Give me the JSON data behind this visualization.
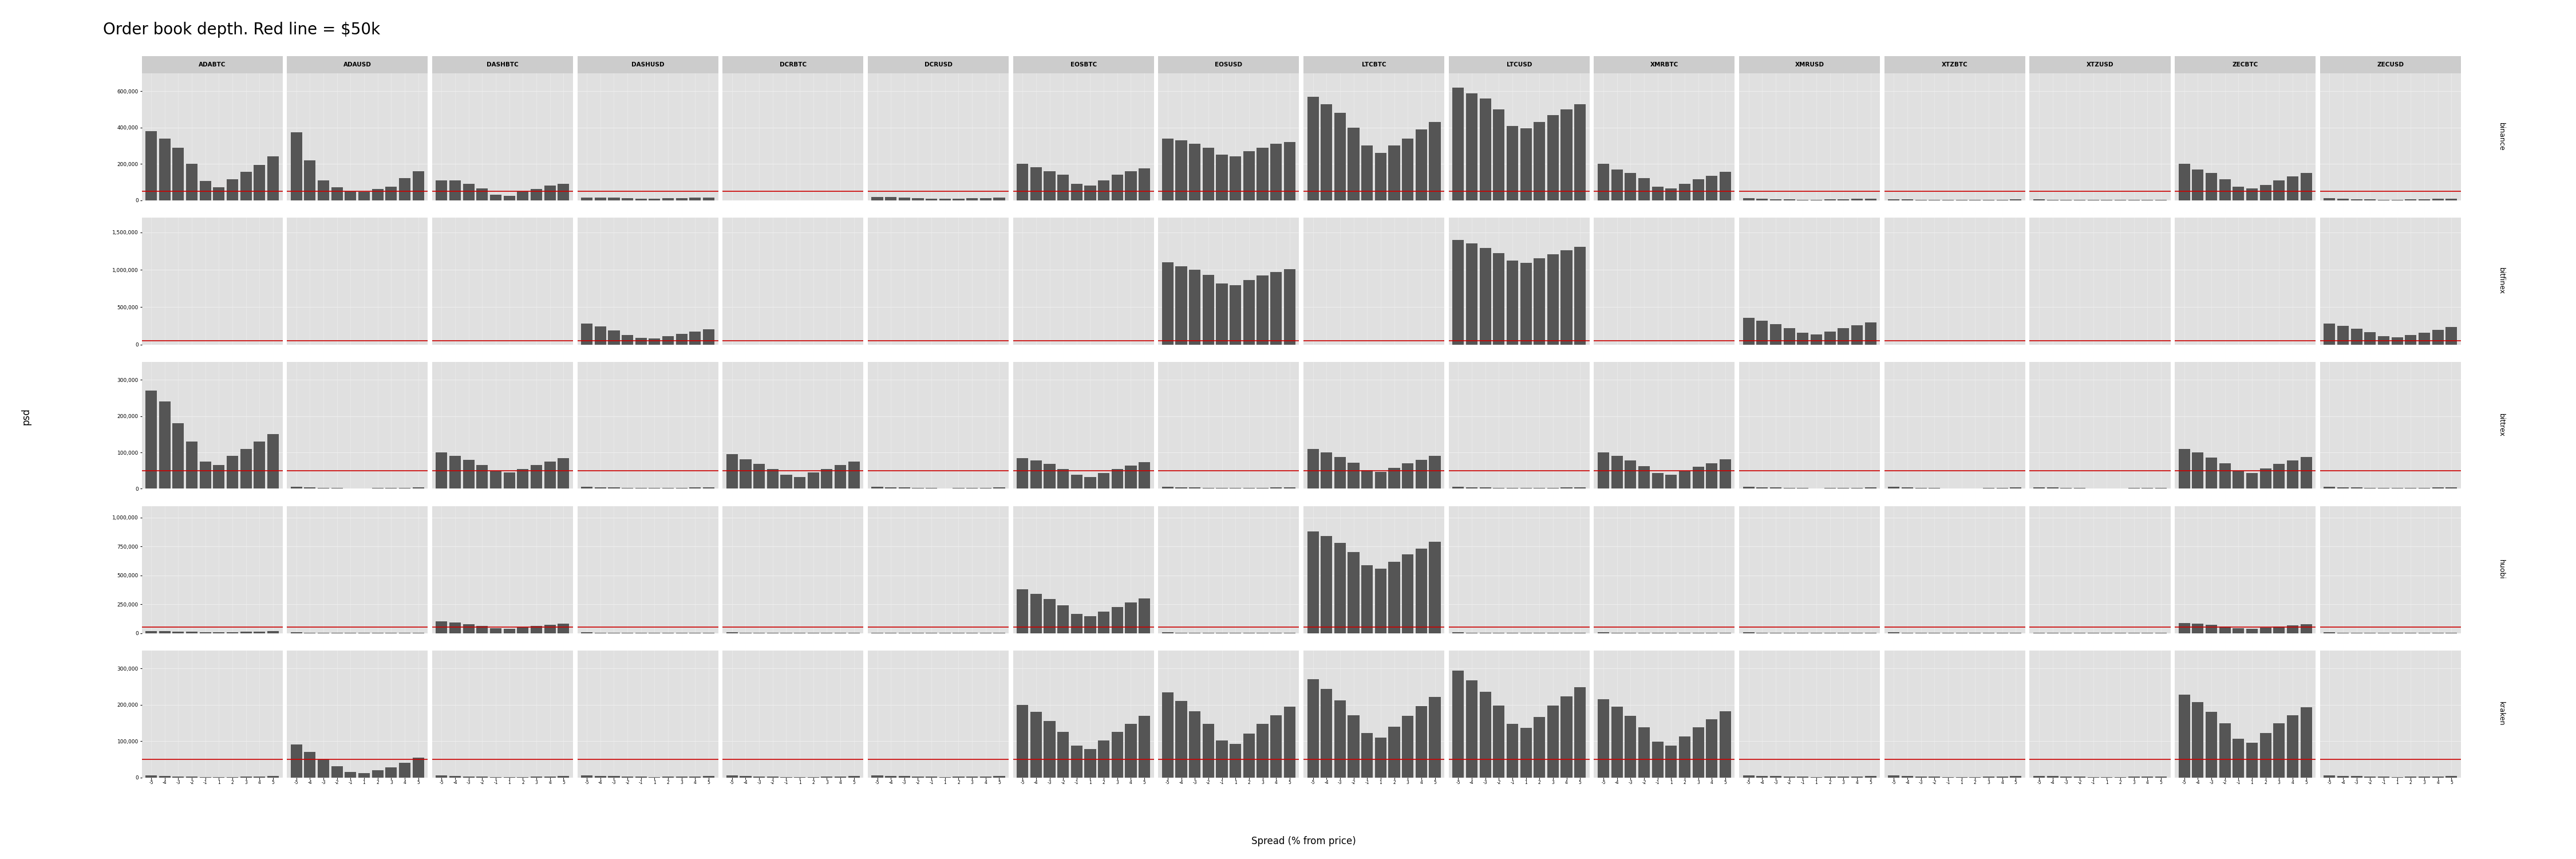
{
  "title": "Order book depth. Red line = $50k",
  "xlabel": "Spread (% from price)",
  "ylabel": "psd",
  "red_line_value": 50000,
  "exchanges": [
    "binance",
    "bitfinex",
    "bittrex",
    "huobi",
    "kraken"
  ],
  "pairs": [
    "ADABTC",
    "ADAUSD",
    "DASHBTC",
    "DASHUSD",
    "DCRBTC",
    "DCRUSD",
    "EOSBTC",
    "EOSUSD",
    "LTCBTC",
    "LTCUSD",
    "XMRBTC",
    "XMRUSD",
    "XTZBTC",
    "XTZUSD",
    "ZECBTC",
    "ZECUSD"
  ],
  "spread_labels": [
    "-5",
    "-4",
    "-3",
    "-2",
    "-1",
    "1",
    "2",
    "3",
    "4",
    "5"
  ],
  "bar_color": "#555555",
  "red_color": "#cc0000",
  "panel_bg": "#e0e0e0",
  "strip_bg": "#cccccc",
  "grid_color": "#f0f0f0",
  "fig_bg": "#ffffff",
  "ylims": {
    "binance": [
      0,
      700000
    ],
    "bitfinex": [
      0,
      1700000
    ],
    "bittrex": [
      0,
      350000
    ],
    "huobi": [
      0,
      1100000
    ],
    "kraken": [
      0,
      350000
    ]
  },
  "yticks": {
    "binance": [
      0,
      200000,
      400000,
      600000
    ],
    "bitfinex": [
      0,
      500000,
      1000000,
      1500000
    ],
    "bittrex": [
      0,
      100000,
      200000,
      300000
    ],
    "huobi": [
      0,
      250000,
      500000,
      750000,
      1000000
    ],
    "kraken": [
      0,
      100000,
      200000,
      300000
    ]
  },
  "data": {
    "binance": {
      "ADABTC": [
        380000,
        340000,
        290000,
        200000,
        105000,
        70000,
        115000,
        155000,
        195000,
        240000
      ],
      "ADAUSD": [
        375000,
        220000,
        110000,
        70000,
        50000,
        45000,
        60000,
        75000,
        120000,
        160000
      ],
      "DASHBTC": [
        110000,
        110000,
        90000,
        65000,
        30000,
        25000,
        50000,
        60000,
        80000,
        90000
      ],
      "DASHUSD": [
        15000,
        15000,
        15000,
        10000,
        8000,
        8000,
        10000,
        12000,
        13000,
        14000
      ],
      "DCRBTC": [
        0,
        0,
        0,
        0,
        0,
        0,
        0,
        0,
        0,
        0
      ],
      "DCRUSD": [
        18000,
        16000,
        13000,
        10000,
        7000,
        7000,
        8000,
        10000,
        12000,
        15000
      ],
      "EOSBTC": [
        200000,
        180000,
        160000,
        140000,
        90000,
        80000,
        110000,
        140000,
        160000,
        175000
      ],
      "EOSUSD": [
        340000,
        330000,
        310000,
        290000,
        250000,
        240000,
        270000,
        290000,
        310000,
        320000
      ],
      "LTCBTC": [
        570000,
        530000,
        480000,
        400000,
        300000,
        260000,
        300000,
        340000,
        390000,
        430000
      ],
      "LTCUSD": [
        620000,
        590000,
        560000,
        500000,
        410000,
        395000,
        430000,
        470000,
        500000,
        530000
      ],
      "XMRBTC": [
        200000,
        170000,
        150000,
        120000,
        75000,
        65000,
        90000,
        115000,
        135000,
        155000
      ],
      "XMRUSD": [
        10000,
        8000,
        6000,
        4000,
        3000,
        3000,
        4000,
        5000,
        7000,
        9000
      ],
      "XTZBTC": [
        5000,
        4000,
        3000,
        2000,
        1500,
        1500,
        2000,
        2500,
        3000,
        4000
      ],
      "XTZUSD": [
        4000,
        3000,
        2000,
        1500,
        1000,
        1000,
        1500,
        2000,
        2500,
        3000
      ],
      "ZECBTC": [
        200000,
        170000,
        150000,
        115000,
        75000,
        65000,
        85000,
        110000,
        130000,
        150000
      ],
      "ZECUSD": [
        10000,
        8000,
        6000,
        5000,
        3000,
        3000,
        4000,
        6000,
        7000,
        9000
      ]
    },
    "bitfinex": {
      "ADABTC": [
        0,
        0,
        0,
        0,
        0,
        0,
        0,
        0,
        0,
        0
      ],
      "ADAUSD": [
        0,
        0,
        0,
        0,
        0,
        0,
        0,
        0,
        0,
        0
      ],
      "DASHBTC": [
        0,
        0,
        0,
        0,
        0,
        0,
        0,
        0,
        0,
        0
      ],
      "DASHUSD": [
        280000,
        240000,
        190000,
        130000,
        90000,
        80000,
        110000,
        140000,
        170000,
        200000
      ],
      "DCRBTC": [
        0,
        0,
        0,
        0,
        0,
        0,
        0,
        0,
        0,
        0
      ],
      "DCRUSD": [
        0,
        0,
        0,
        0,
        0,
        0,
        0,
        0,
        0,
        0
      ],
      "EOSBTC": [
        0,
        0,
        0,
        0,
        0,
        0,
        0,
        0,
        0,
        0
      ],
      "EOSUSD": [
        1100000,
        1050000,
        1000000,
        930000,
        820000,
        790000,
        860000,
        920000,
        970000,
        1010000
      ],
      "LTCBTC": [
        0,
        0,
        0,
        0,
        0,
        0,
        0,
        0,
        0,
        0
      ],
      "LTCUSD": [
        1400000,
        1350000,
        1290000,
        1220000,
        1120000,
        1090000,
        1150000,
        1210000,
        1260000,
        1310000
      ],
      "XMRBTC": [
        0,
        0,
        0,
        0,
        0,
        0,
        0,
        0,
        0,
        0
      ],
      "XMRUSD": [
        360000,
        320000,
        270000,
        220000,
        155000,
        135000,
        175000,
        215000,
        255000,
        295000
      ],
      "XTZBTC": [
        0,
        0,
        0,
        0,
        0,
        0,
        0,
        0,
        0,
        0
      ],
      "XTZUSD": [
        0,
        0,
        0,
        0,
        0,
        0,
        0,
        0,
        0,
        0
      ],
      "ZECBTC": [
        0,
        0,
        0,
        0,
        0,
        0,
        0,
        0,
        0,
        0
      ],
      "ZECUSD": [
        280000,
        250000,
        210000,
        165000,
        110000,
        95000,
        130000,
        160000,
        195000,
        230000
      ]
    },
    "bittrex": {
      "ADABTC": [
        270000,
        240000,
        180000,
        130000,
        75000,
        65000,
        90000,
        110000,
        130000,
        150000
      ],
      "ADAUSD": [
        5000,
        4000,
        3000,
        2000,
        1500,
        1500,
        2000,
        2500,
        3000,
        4000
      ],
      "DASHBTC": [
        100000,
        90000,
        80000,
        65000,
        50000,
        45000,
        55000,
        65000,
        75000,
        85000
      ],
      "DASHUSD": [
        5000,
        4500,
        4000,
        3000,
        2000,
        2000,
        2500,
        3000,
        3500,
        4500
      ],
      "DCRBTC": [
        95000,
        82000,
        68000,
        55000,
        38000,
        32000,
        45000,
        55000,
        65000,
        75000
      ],
      "DCRUSD": [
        5000,
        4000,
        3500,
        2500,
        2000,
        1500,
        2000,
        2500,
        3000,
        4000
      ],
      "EOSBTC": [
        85000,
        78000,
        68000,
        55000,
        38000,
        32000,
        44000,
        55000,
        64000,
        73000
      ],
      "EOSUSD": [
        5000,
        4000,
        3500,
        3000,
        2000,
        2000,
        2500,
        3000,
        3500,
        4500
      ],
      "LTCBTC": [
        110000,
        100000,
        88000,
        72000,
        52000,
        46000,
        58000,
        70000,
        80000,
        90000
      ],
      "LTCUSD": [
        5000,
        4500,
        4000,
        3000,
        2000,
        2000,
        2500,
        3000,
        3500,
        4500
      ],
      "XMRBTC": [
        100000,
        90000,
        78000,
        62000,
        44000,
        38000,
        50000,
        61000,
        71000,
        81000
      ],
      "XMRUSD": [
        5000,
        4000,
        3500,
        2500,
        2000,
        1500,
        2000,
        2500,
        3000,
        4000
      ],
      "XTZBTC": [
        5000,
        4000,
        3000,
        2000,
        1500,
        1000,
        1500,
        2000,
        2500,
        3500
      ],
      "XTZUSD": [
        4000,
        3500,
        3000,
        2000,
        1500,
        1000,
        1500,
        2000,
        2500,
        3000
      ],
      "ZECBTC": [
        110000,
        100000,
        86000,
        70000,
        50000,
        44000,
        56000,
        68000,
        78000,
        88000
      ],
      "ZECUSD": [
        5000,
        4500,
        4000,
        3000,
        2000,
        2000,
        2500,
        3000,
        3500,
        4500
      ]
    },
    "huobi": {
      "ADABTC": [
        18000,
        16000,
        13000,
        10000,
        7000,
        6000,
        8000,
        10000,
        12000,
        15000
      ],
      "ADAUSD": [
        5000,
        4000,
        3000,
        2000,
        1500,
        1000,
        1500,
        2000,
        2500,
        3500
      ],
      "DASHBTC": [
        100000,
        90000,
        78000,
        62000,
        44000,
        38000,
        50000,
        62000,
        73000,
        84000
      ],
      "DASHUSD": [
        5000,
        4000,
        3500,
        2500,
        2000,
        1500,
        2000,
        2500,
        3000,
        4000
      ],
      "DCRBTC": [
        5000,
        4000,
        3000,
        2000,
        1500,
        1000,
        1500,
        2000,
        2500,
        3500
      ],
      "DCRUSD": [
        4000,
        3500,
        3000,
        2000,
        1500,
        1000,
        1500,
        2000,
        2500,
        3000
      ],
      "EOSBTC": [
        380000,
        340000,
        295000,
        240000,
        165000,
        145000,
        185000,
        225000,
        265000,
        300000
      ],
      "EOSUSD": [
        5000,
        4000,
        3500,
        2500,
        2000,
        1500,
        2000,
        2500,
        3000,
        4000
      ],
      "LTCBTC": [
        880000,
        840000,
        780000,
        700000,
        590000,
        560000,
        620000,
        680000,
        730000,
        790000
      ],
      "LTCUSD": [
        5000,
        4500,
        4000,
        3000,
        2000,
        2000,
        2500,
        3000,
        3500,
        4500
      ],
      "XMRBTC": [
        5000,
        4000,
        3500,
        2500,
        2000,
        1500,
        2000,
        2500,
        3000,
        4000
      ],
      "XMRUSD": [
        5000,
        4000,
        3000,
        2000,
        1500,
        1000,
        1500,
        2000,
        2500,
        3500
      ],
      "XTZBTC": [
        5000,
        4000,
        3000,
        2000,
        1500,
        1000,
        1500,
        2000,
        2500,
        3500
      ],
      "XTZUSD": [
        4000,
        3500,
        3000,
        2000,
        1500,
        1000,
        1500,
        2000,
        2500,
        3000
      ],
      "ZECBTC": [
        88000,
        80000,
        70000,
        57000,
        40000,
        35000,
        46000,
        57000,
        67000,
        77000
      ],
      "ZECUSD": [
        5000,
        4000,
        3500,
        2500,
        2000,
        1500,
        2000,
        2500,
        3000,
        4000
      ]
    },
    "kraken": {
      "ADABTC": [
        5000,
        4000,
        3000,
        2000,
        1500,
        1000,
        1500,
        2000,
        2500,
        3500
      ],
      "ADAUSD": [
        90000,
        70000,
        50000,
        30000,
        15000,
        12000,
        20000,
        28000,
        40000,
        55000
      ],
      "DASHBTC": [
        5000,
        4000,
        3000,
        2000,
        1500,
        1000,
        1500,
        2000,
        2500,
        3500
      ],
      "DASHUSD": [
        5000,
        4000,
        3500,
        2500,
        2000,
        1500,
        2000,
        2500,
        3000,
        4000
      ],
      "DCRBTC": [
        5000,
        4000,
        3000,
        2000,
        1500,
        1000,
        1500,
        2000,
        2500,
        3500
      ],
      "DCRUSD": [
        5000,
        4000,
        3500,
        2500,
        2000,
        1500,
        2000,
        2500,
        3000,
        4000
      ],
      "EOSBTC": [
        200000,
        180000,
        155000,
        125000,
        88000,
        78000,
        102000,
        126000,
        148000,
        170000
      ],
      "EOSUSD": [
        235000,
        210000,
        182000,
        147000,
        102000,
        92000,
        120000,
        148000,
        172000,
        195000
      ],
      "LTCBTC": [
        270000,
        244000,
        212000,
        172000,
        122000,
        110000,
        140000,
        170000,
        196000,
        222000
      ],
      "LTCUSD": [
        295000,
        268000,
        236000,
        198000,
        148000,
        137000,
        167000,
        198000,
        224000,
        249000
      ],
      "XMRBTC": [
        215000,
        195000,
        170000,
        138000,
        98000,
        88000,
        113000,
        138000,
        160000,
        183000
      ],
      "XMRUSD": [
        5000,
        4000,
        3500,
        2500,
        2000,
        1500,
        2000,
        2500,
        3000,
        4000
      ],
      "XTZBTC": [
        5000,
        4000,
        3000,
        2000,
        1500,
        1000,
        1500,
        2000,
        2500,
        3500
      ],
      "XTZUSD": [
        4000,
        3500,
        3000,
        2000,
        1500,
        1000,
        1500,
        2000,
        2500,
        3000
      ],
      "ZECBTC": [
        228000,
        207000,
        181000,
        149000,
        106000,
        96000,
        123000,
        149000,
        172000,
        194000
      ],
      "ZECUSD": [
        5000,
        4000,
        3500,
        2500,
        2000,
        1500,
        2000,
        2500,
        3000,
        4000
      ]
    }
  }
}
